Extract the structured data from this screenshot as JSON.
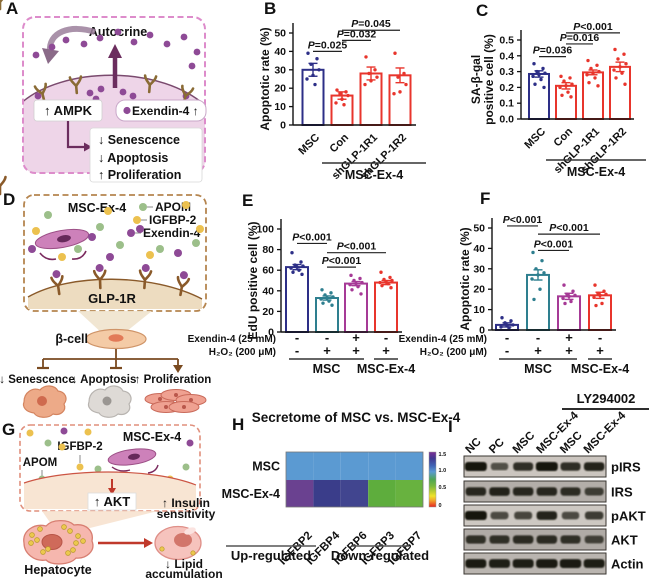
{
  "panels": {
    "A": {
      "label": "A",
      "autocrine": "Autocrine",
      "ampk": "↑ AMPK",
      "exendin": "Exendin-4 ↑",
      "effects": [
        "↓ Senescence",
        "↓ Apoptosis",
        "↑ Proliferation"
      ]
    },
    "B": {
      "label": "B"
    },
    "C": {
      "label": "C"
    },
    "D": {
      "label": "D",
      "source_cell": "MSC-Ex-4",
      "legend": [
        {
          "name": "APOM",
          "color": "#9cbf8a"
        },
        {
          "name": "IGFBP-2",
          "color": "#ecc14f"
        },
        {
          "name": "Exendin-4",
          "color": "#8e4a96"
        }
      ],
      "receptor": "GLP-1R",
      "target_cell": "β-cell",
      "effects": [
        "↓ Senescence",
        "↓ Apoptosis",
        "↑ Proliferation"
      ]
    },
    "E": {
      "label": "E"
    },
    "F": {
      "label": "F"
    },
    "G": {
      "label": "G",
      "source_cell": "MSC-Ex-4",
      "igfbp2": "IGFBP-2",
      "apom": "APOM",
      "akt": "↑ AKT",
      "hepatocyte": "Hepatocyte",
      "insulin": [
        "↑ Insulin",
        "sensitivity"
      ],
      "lipid": [
        "↓ Lipid",
        "accumulation"
      ]
    },
    "H": {
      "label": "H"
    },
    "I": {
      "label": "I",
      "treatment": "LY294002",
      "lanes": [
        "NC",
        "PC",
        "MSC",
        "MSC-Ex-4",
        "MSC",
        "MSC-Ex-4"
      ],
      "blots": [
        {
          "label": "pIRS",
          "bg": "#cbc5bf",
          "intensity": [
            1,
            0.4,
            0.75,
            1,
            0.75,
            0.85
          ],
          "width": [
            1,
            0.55,
            0.8,
            1,
            0.8,
            0.85
          ]
        },
        {
          "label": "IRS",
          "bg": "#b3aea9",
          "intensity": [
            0.8,
            0.85,
            0.8,
            0.8,
            0.75,
            0.55
          ],
          "width": [
            0.85,
            0.85,
            0.85,
            0.85,
            0.8,
            0.7
          ]
        },
        {
          "label": "pAKT",
          "bg": "#cdc8c2",
          "intensity": [
            1,
            0.45,
            0.5,
            0.85,
            0.45,
            0.6
          ],
          "width": [
            1,
            0.6,
            0.6,
            0.85,
            0.55,
            0.65
          ]
        },
        {
          "label": "AKT",
          "bg": "#b0aba6",
          "intensity": [
            0.7,
            0.7,
            0.75,
            0.75,
            0.7,
            0.5
          ],
          "width": [
            0.8,
            0.8,
            0.85,
            0.85,
            0.8,
            0.7
          ]
        },
        {
          "label": "Actin",
          "bg": "#bab5b0",
          "intensity": [
            0.95,
            0.9,
            0.9,
            0.95,
            0.95,
            0.9
          ],
          "width": [
            0.9,
            0.9,
            0.9,
            0.95,
            0.95,
            0.9
          ]
        }
      ]
    }
  },
  "chart_data": [
    {
      "id": "B",
      "type": "bar",
      "ylabel": "Apoptotic rate (%)",
      "ylim": [
        0,
        50
      ],
      "yticks": [
        0,
        10,
        20,
        30,
        40,
        50
      ],
      "ytick_labels": [
        "0",
        "10",
        "20",
        "30",
        "40",
        "50"
      ],
      "categories": [
        "MSC",
        "Con",
        "shGLP-1R1",
        "shGLP-1R2"
      ],
      "values": [
        30,
        16,
        28,
        27
      ],
      "errors": [
        3.5,
        2,
        3.5,
        4
      ],
      "colors": [
        "#2d2f87",
        "#e8352c",
        "#e8352c",
        "#e8352c"
      ],
      "points": [
        [
          39,
          36,
          33,
          30,
          27,
          25,
          22
        ],
        [
          19,
          18,
          17,
          16,
          14,
          12,
          11
        ],
        [
          37,
          30,
          28,
          26,
          24,
          22
        ],
        [
          39,
          28,
          26,
          22,
          18,
          17
        ]
      ],
      "comparisons": [
        {
          "from": 0,
          "to": 1,
          "label": "P=0.025",
          "height": 40
        },
        {
          "from": 1,
          "to": 2,
          "label": "P=0.032",
          "height": 46
        },
        {
          "from": 1,
          "to": 3,
          "label": "P=0.045",
          "height": 51.5
        }
      ],
      "group_line": {
        "from": 1,
        "to": 3,
        "label": "MSC-Ex-4"
      }
    },
    {
      "id": "C",
      "type": "bar",
      "ylabel_lines": [
        "SA-β-gal",
        "positive cell (%)"
      ],
      "ylim": [
        0,
        0.5
      ],
      "yticks": [
        0,
        0.1,
        0.2,
        0.3,
        0.4,
        0.5
      ],
      "ytick_labels": [
        "0.0",
        "0.1",
        "0.2",
        "0.3",
        "0.4",
        "0.5"
      ],
      "categories": [
        "MSC",
        "Con",
        "shGLP-1R1",
        "shGLP-1R2"
      ],
      "values": [
        0.285,
        0.21,
        0.295,
        0.33
      ],
      "errors": [
        0.02,
        0.02,
        0.015,
        0.03
      ],
      "colors": [
        "#2d2f87",
        "#e8352c",
        "#e8352c",
        "#e8352c"
      ],
      "points": [
        [
          0.35,
          0.32,
          0.3,
          0.29,
          0.28,
          0.27,
          0.25,
          0.22,
          0.2
        ],
        [
          0.27,
          0.26,
          0.24,
          0.22,
          0.21,
          0.2,
          0.17,
          0.15,
          0.14
        ],
        [
          0.37,
          0.34,
          0.32,
          0.3,
          0.29,
          0.28,
          0.26,
          0.23,
          0.21
        ],
        [
          0.44,
          0.41,
          0.38,
          0.35,
          0.33,
          0.31,
          0.29,
          0.26,
          0.22
        ]
      ],
      "comparisons": [
        {
          "from": 0,
          "to": 1,
          "label": "P=0.036",
          "height": 0.395
        },
        {
          "from": 1,
          "to": 2,
          "label": "P=0.016",
          "height": 0.475
        },
        {
          "from": 1,
          "to": 3,
          "label": "P<0.001",
          "height": 0.545
        }
      ],
      "group_line": {
        "from": 1,
        "to": 3,
        "label": "MSC-Ex-4"
      }
    },
    {
      "id": "E",
      "type": "bar",
      "ylabel": "EdU positive cell (%)",
      "ylim": [
        0,
        100
      ],
      "yticks": [
        0,
        20,
        40,
        60,
        80,
        100
      ],
      "ytick_labels": [
        "0",
        "20",
        "40",
        "60",
        "80",
        "100"
      ],
      "values": [
        63,
        33,
        47,
        48
      ],
      "errors": [
        2.5,
        2,
        2,
        2
      ],
      "colors": [
        "#2d2f87",
        "#2e7f8f",
        "#a63a96",
        "#e8352c"
      ],
      "points": [
        [
          77,
          68,
          65,
          64,
          63,
          62,
          60,
          58,
          56
        ],
        [
          41,
          38,
          36,
          34,
          33,
          32,
          30,
          28,
          26
        ],
        [
          55,
          52,
          50,
          48,
          47,
          46,
          44,
          41,
          37
        ],
        [
          58,
          53,
          51,
          50,
          49,
          48,
          47,
          45,
          43
        ]
      ],
      "comparisons": [
        {
          "from": 0,
          "to": 1,
          "label": "P<0.001",
          "height": 86
        },
        {
          "from": 1,
          "to": 3,
          "label": "P<0.001",
          "height": 77
        },
        {
          "from": 1,
          "to": 2,
          "label": "P<0.001",
          "height": 63
        }
      ],
      "treatments": [
        {
          "label": "Exendin-4 (25 mM)",
          "values": [
            "-",
            "-",
            "+",
            "-"
          ]
        },
        {
          "label": "H₂O₂ (200 μM)",
          "values": [
            "-",
            "+",
            "+",
            "+"
          ]
        }
      ],
      "group_lines": [
        {
          "from": 0,
          "to": 2,
          "label": "MSC"
        },
        {
          "from": 3,
          "to": 3,
          "label": "MSC-Ex-4"
        }
      ]
    },
    {
      "id": "F",
      "type": "bar",
      "ylabel": "Apoptotic rate (%)",
      "ylim": [
        0,
        50
      ],
      "yticks": [
        0,
        10,
        20,
        30,
        40,
        50
      ],
      "ytick_labels": [
        "0",
        "10",
        "20",
        "30",
        "40",
        "50"
      ],
      "values": [
        2.5,
        27,
        16.5,
        17
      ],
      "errors": [
        1,
        2.5,
        1.5,
        1.5
      ],
      "colors": [
        "#2d2f87",
        "#2e7f8f",
        "#a63a96",
        "#e8352c"
      ],
      "points": [
        [
          6,
          4.5,
          3.5,
          2.5,
          2,
          1.5,
          1
        ],
        [
          38,
          34,
          30,
          28,
          27,
          25,
          20,
          15
        ],
        [
          22,
          19,
          17.5,
          17,
          16.5,
          15.5,
          14,
          13
        ],
        [
          22,
          19,
          18,
          17.5,
          17,
          16,
          13,
          12
        ]
      ],
      "comparisons": [
        {
          "from": 0,
          "to": 1,
          "label": "P<0.001",
          "height": 51
        },
        {
          "from": 1,
          "to": 3,
          "label": "P<0.001",
          "height": 47
        },
        {
          "from": 1,
          "to": 2,
          "label": "P<0.001",
          "height": 39
        }
      ],
      "treatments": [
        {
          "label": "Exendin-4 (25 mM)",
          "values": [
            "-",
            "-",
            "+",
            "-"
          ]
        },
        {
          "label": "H₂O₂ (200 μM)",
          "values": [
            "-",
            "+",
            "+",
            "+"
          ]
        }
      ],
      "group_lines": [
        {
          "from": 0,
          "to": 2,
          "label": "MSC"
        },
        {
          "from": 3,
          "to": 3,
          "label": "MSC-Ex-4"
        }
      ]
    },
    {
      "id": "H",
      "type": "heatmap",
      "title": "Secretome of MSC vs. MSC-Ex-4",
      "rows": [
        "MSC",
        "MSC-Ex-4"
      ],
      "columns": [
        "IGFBP2",
        "IGFBP4",
        "IGFBP6",
        "IGFBP3",
        "IGFBP7"
      ],
      "values": [
        [
          1.0,
          1.0,
          1.0,
          1.0,
          1.0
        ],
        [
          1.45,
          1.3,
          1.3,
          0.65,
          0.65
        ]
      ],
      "cell_colors": [
        [
          "#5b9ad2",
          "#5b9ad2",
          "#5b9ad2",
          "#5b9ad2",
          "#5b9ad2"
        ],
        [
          "#6a4190",
          "#3a3d8a",
          "#41458f",
          "#5ead3d",
          "#68b23f"
        ]
      ],
      "colorbar": {
        "ticks": [
          "1.5",
          "1.0",
          "0.5",
          "0"
        ]
      },
      "groups": [
        {
          "label": "Up-regulated"
        },
        {
          "label": "Down-regulated"
        }
      ]
    }
  ]
}
